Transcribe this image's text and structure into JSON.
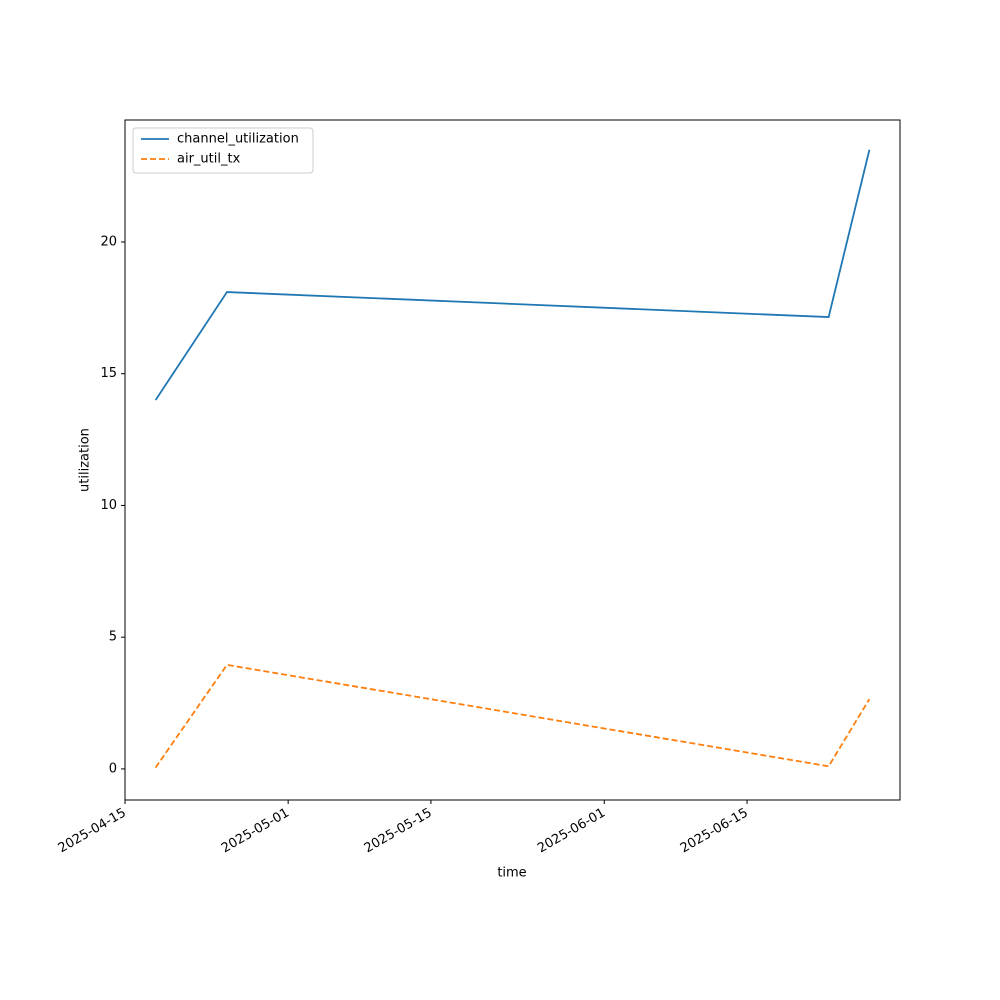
{
  "chart_data": {
    "type": "line",
    "x_label": "time",
    "y_label": "utilization",
    "x": [
      "2025-04-18",
      "2025-04-25",
      "2025-06-23",
      "2025-06-27"
    ],
    "series": [
      {
        "name": "channel_utilization",
        "color": "#1f77b4",
        "dash": "solid",
        "values": [
          14.0,
          18.1,
          17.15,
          23.5
        ]
      },
      {
        "name": "air_util_tx",
        "color": "#ff7f0e",
        "dash": "dashed",
        "values": [
          0.05,
          3.95,
          0.1,
          2.65
        ]
      }
    ],
    "xlim": [
      "2025-04-15",
      "2025-06-30"
    ],
    "xticks": [
      "2025-04-15",
      "2025-05-01",
      "2025-05-15",
      "2025-06-01",
      "2025-06-15"
    ],
    "ylim": [
      -1.18,
      24.63
    ],
    "yticks": [
      0,
      5,
      10,
      15,
      20
    ],
    "legend": "upper-left",
    "grid": false
  }
}
